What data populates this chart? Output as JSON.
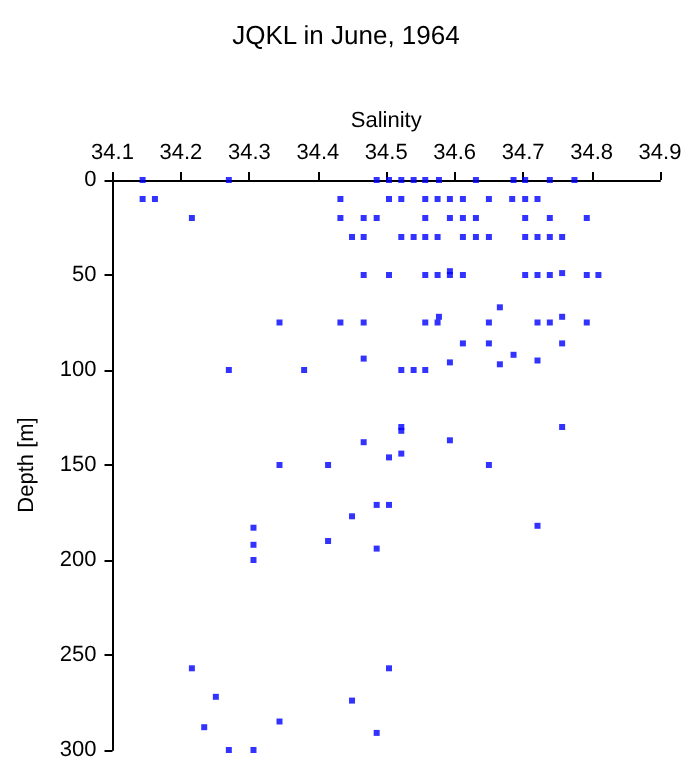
{
  "chart_data": {
    "type": "scatter",
    "title": "JQKL in June, 1964",
    "xlabel": "Salinity",
    "ylabel": "Depth [m]",
    "xlim": [
      34.1,
      34.9
    ],
    "xticks": [
      34.1,
      34.2,
      34.3,
      34.4,
      34.5,
      34.6,
      34.7,
      34.8,
      34.9
    ],
    "ylim": [
      300,
      0
    ],
    "yticks": [
      0,
      50,
      100,
      150,
      200,
      250,
      300
    ],
    "grid": false,
    "marker": "square",
    "series": [
      {
        "color": "#0000ff",
        "x": [
          34.144,
          34.27,
          34.486,
          34.504,
          34.522,
          34.54,
          34.557,
          34.577,
          34.631,
          34.686,
          34.703,
          34.739,
          34.775,
          34.144,
          34.162,
          34.433,
          34.504,
          34.522,
          34.557,
          34.575,
          34.593,
          34.612,
          34.65,
          34.684,
          34.703,
          34.721,
          34.216,
          34.433,
          34.467,
          34.486,
          34.557,
          34.593,
          34.612,
          34.631,
          34.703,
          34.739,
          34.793,
          34.45,
          34.467,
          34.522,
          34.54,
          34.557,
          34.575,
          34.612,
          34.631,
          34.65,
          34.703,
          34.721,
          34.739,
          34.757,
          34.467,
          34.504,
          34.557,
          34.575,
          34.593,
          34.593,
          34.612,
          34.703,
          34.721,
          34.739,
          34.757,
          34.793,
          34.81,
          34.666,
          34.577,
          34.344,
          34.433,
          34.467,
          34.557,
          34.575,
          34.65,
          34.721,
          34.739,
          34.757,
          34.793,
          34.612,
          34.65,
          34.757,
          34.686,
          34.467,
          34.593,
          34.666,
          34.721,
          34.27,
          34.38,
          34.522,
          34.54,
          34.557,
          34.522,
          34.522,
          34.757,
          34.467,
          34.593,
          34.522,
          34.504,
          34.344,
          34.415,
          34.65,
          34.486,
          34.504,
          34.45,
          34.721,
          34.306,
          34.306,
          34.415,
          34.486,
          34.306,
          34.216,
          34.504,
          34.251,
          34.45,
          34.344,
          34.234,
          34.486,
          34.27,
          34.306
        ],
        "values": [
          0,
          0,
          0,
          0,
          0,
          0,
          0,
          0,
          0,
          0,
          0,
          0,
          0,
          10,
          10,
          10,
          10,
          10,
          10,
          10,
          10,
          10,
          10,
          10,
          10,
          10,
          20,
          20,
          20,
          20,
          20,
          20,
          20,
          20,
          20,
          20,
          20,
          30,
          30,
          30,
          30,
          30,
          30,
          30,
          30,
          30,
          30,
          30,
          30,
          30,
          50,
          50,
          50,
          50,
          48,
          50,
          50,
          50,
          50,
          50,
          49,
          50,
          50,
          67,
          72,
          75,
          75,
          75,
          75,
          75,
          75,
          75,
          75,
          72,
          75,
          86,
          86,
          86,
          92,
          94,
          96,
          97,
          95,
          100,
          100,
          100,
          100,
          100,
          130,
          132,
          130,
          138,
          137,
          144,
          146,
          150,
          150,
          150,
          171,
          171,
          177,
          182,
          183,
          192,
          190,
          194,
          200,
          257,
          257,
          272,
          274,
          285,
          288,
          291,
          300,
          300
        ]
      }
    ]
  }
}
